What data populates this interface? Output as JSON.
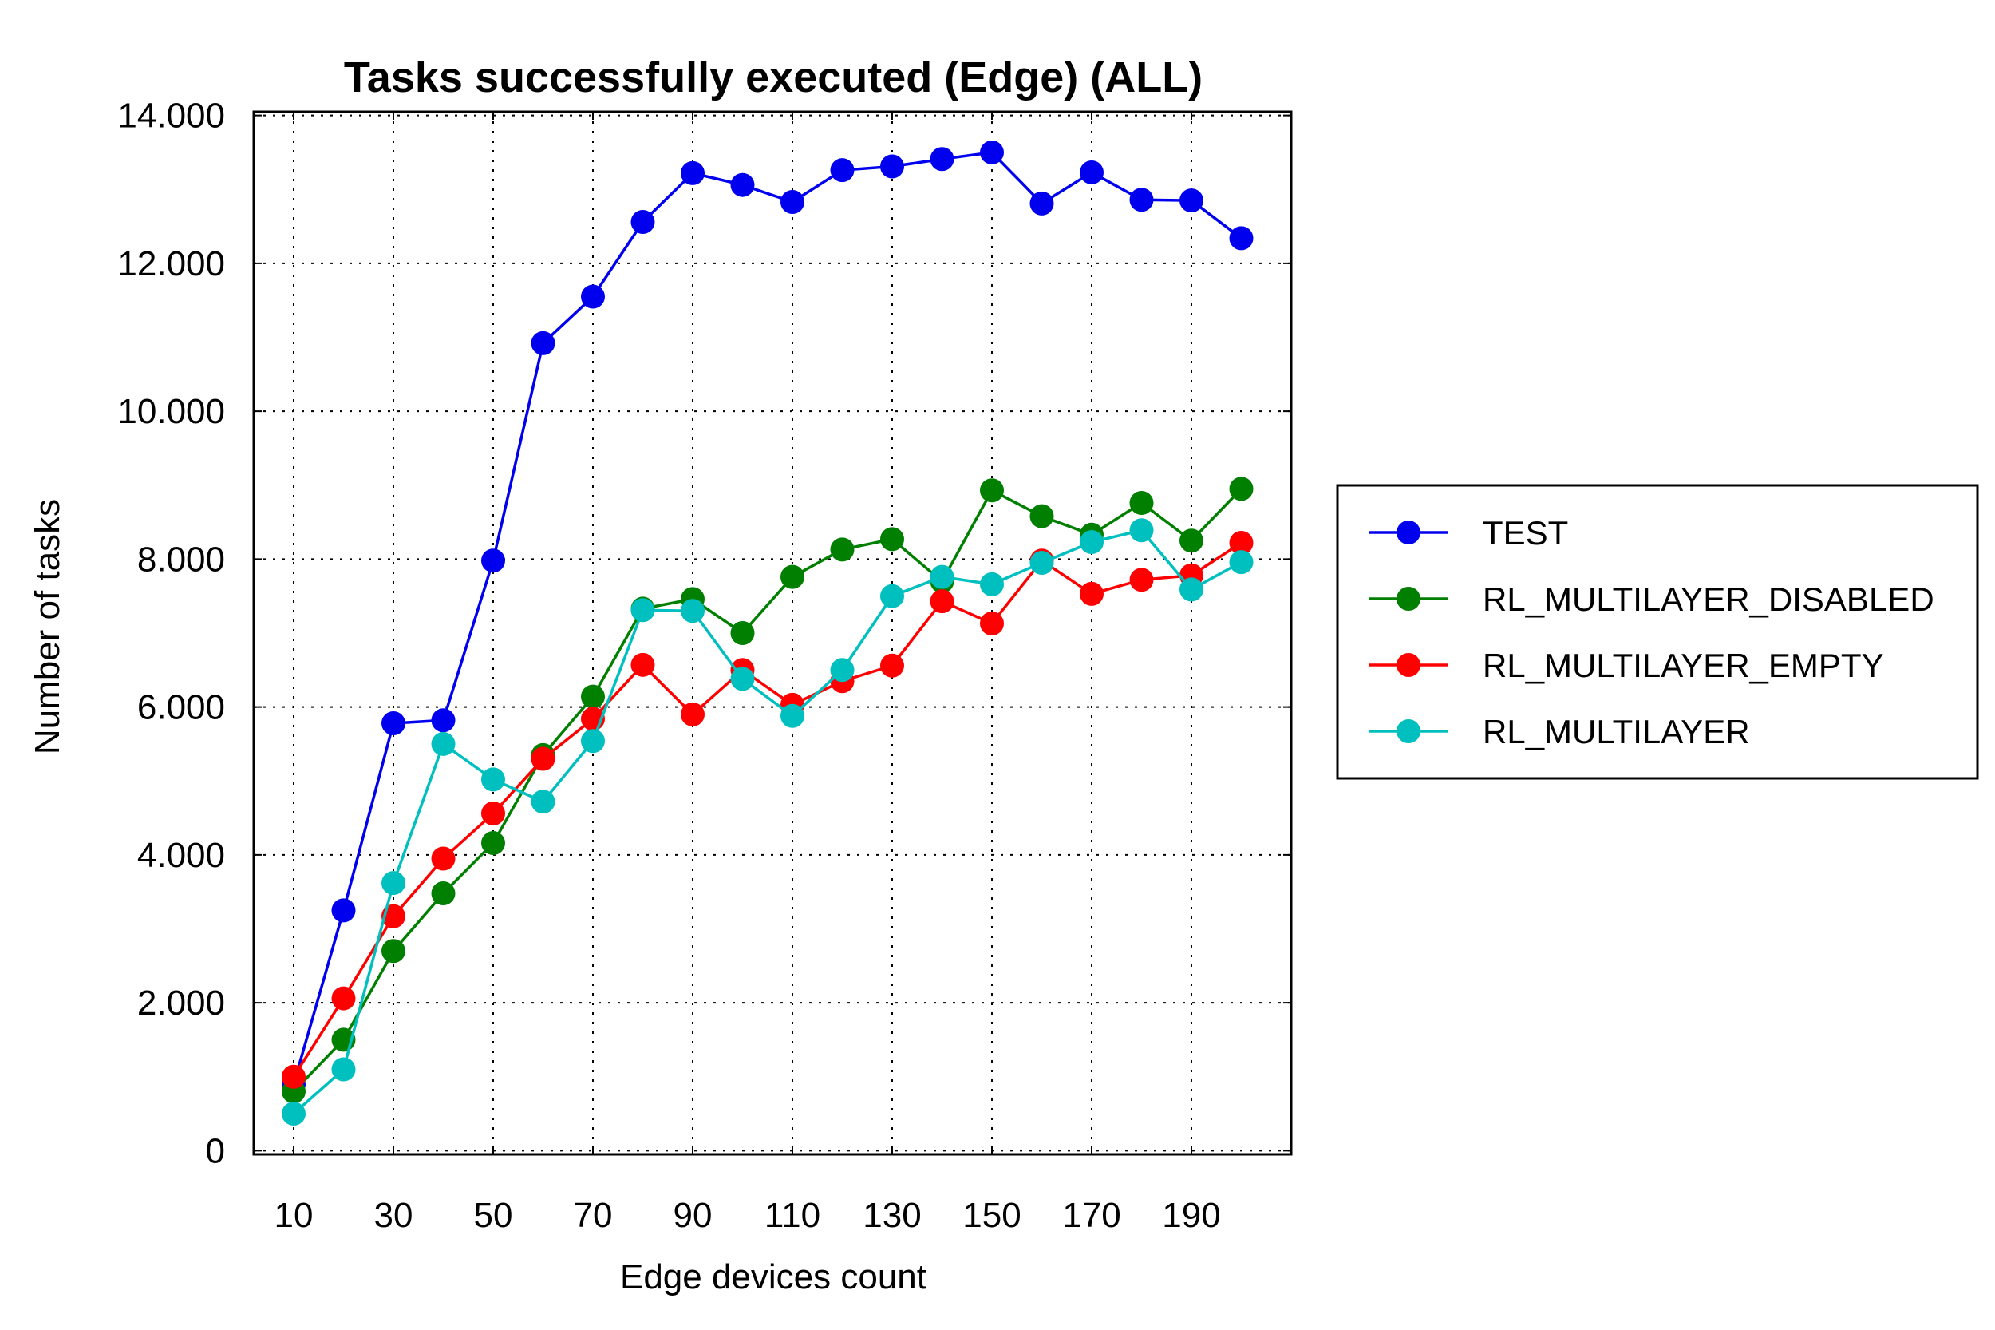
{
  "chart_data": {
    "type": "line",
    "title": "Tasks successfully executed (Edge) (ALL)",
    "xlabel": "Edge devices count",
    "ylabel": "Number of tasks",
    "x": [
      10,
      20,
      30,
      40,
      50,
      60,
      70,
      80,
      90,
      100,
      110,
      120,
      130,
      140,
      150,
      160,
      170,
      180,
      190,
      200
    ],
    "x_tick_values": [
      10,
      30,
      50,
      70,
      90,
      110,
      130,
      150,
      170,
      190
    ],
    "x_tick_labels": [
      "10",
      "30",
      "50",
      "70",
      "90",
      "110",
      "130",
      "150",
      "170",
      "190"
    ],
    "xlim": [
      2,
      210
    ],
    "y_tick_values": [
      0,
      2000,
      4000,
      6000,
      8000,
      10000,
      12000,
      14000
    ],
    "y_tick_labels": [
      "0",
      "2.000",
      "4.000",
      "6.000",
      "8.000",
      "10.000",
      "12.000",
      "14.000"
    ],
    "ylim": [
      -50,
      14050
    ],
    "grid": true,
    "legend_position": "right, outside plot",
    "series": [
      {
        "name": "TEST",
        "color": "#0000ee",
        "values": [
          900,
          3250,
          5780,
          5820,
          7980,
          10920,
          11550,
          12560,
          13220,
          13060,
          12830,
          13260,
          13310,
          13410,
          13500,
          12810,
          13230,
          12860,
          12850,
          12340
        ]
      },
      {
        "name": "RL_MULTILAYER_DISABLED",
        "color": "#007f00",
        "values": [
          800,
          1500,
          2700,
          3480,
          4160,
          5350,
          6140,
          7330,
          7460,
          7000,
          7760,
          8130,
          8270,
          7700,
          8930,
          8580,
          8330,
          8760,
          8250,
          8950
        ]
      },
      {
        "name": "RL_MULTILAYER_EMPTY",
        "color": "#ff0000",
        "values": [
          1000,
          2060,
          3170,
          3950,
          4560,
          5300,
          5840,
          6570,
          5900,
          6500,
          6030,
          6350,
          6560,
          7430,
          7130,
          7980,
          7530,
          7720,
          7780,
          8220
        ]
      },
      {
        "name": "RL_MULTILAYER",
        "color": "#00bfbf",
        "values": [
          500,
          1100,
          3620,
          5500,
          5020,
          4720,
          5540,
          7310,
          7300,
          6380,
          5880,
          6500,
          7500,
          7760,
          7660,
          7950,
          8230,
          8390,
          7590,
          7960
        ]
      }
    ]
  }
}
